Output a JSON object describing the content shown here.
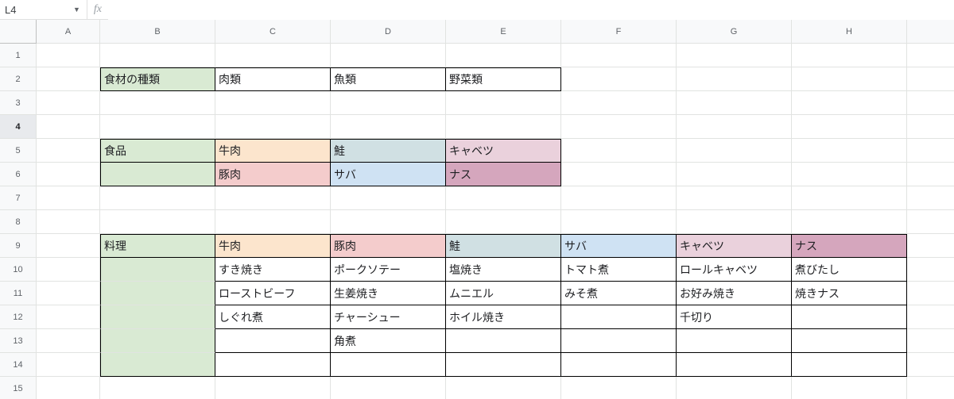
{
  "nameBox": "L4",
  "formula": "",
  "selectedRow": 4,
  "columns": [
    "A",
    "B",
    "C",
    "D",
    "E",
    "F",
    "G",
    "H"
  ],
  "rows": [
    1,
    2,
    3,
    4,
    5,
    6,
    7,
    8,
    9,
    10,
    11,
    12,
    13,
    14,
    15
  ],
  "colors": {
    "headerBg": "#f8f9fa",
    "green1": "#d9ead3",
    "orange1": "#fce5cd",
    "pink1": "#f4cccc",
    "blue1": "#d0e0e3",
    "bluepale": "#cfe2f3",
    "rose1": "#ead1dc",
    "mauve": "#d5a6bd",
    "gridLine": "#e1e3e1",
    "black": "#000000"
  },
  "cells": {
    "B2": {
      "v": "食材の種類",
      "bg": "#d9ead3",
      "border": "all"
    },
    "C2": {
      "v": "肉類",
      "border": "tbr"
    },
    "D2": {
      "v": "魚類",
      "border": "tbr"
    },
    "E2": {
      "v": "野菜類",
      "border": "tbr"
    },
    "B5": {
      "v": "食品",
      "bg": "#d9ead3",
      "border": "all"
    },
    "C5": {
      "v": "牛肉",
      "bg": "#fce5cd",
      "border": "tbr"
    },
    "D5": {
      "v": "鮭",
      "bg": "#d0e0e3",
      "border": "tbr"
    },
    "E5": {
      "v": "キャベツ",
      "bg": "#ead1dc",
      "border": "tbr"
    },
    "B6": {
      "v": "",
      "bg": "#d9ead3",
      "border": "lbr"
    },
    "C6": {
      "v": "豚肉",
      "bg": "#f4cccc",
      "border": "br"
    },
    "D6": {
      "v": "サバ",
      "bg": "#cfe2f3",
      "border": "br"
    },
    "E6": {
      "v": "ナス",
      "bg": "#d5a6bd",
      "border": "br"
    },
    "B9": {
      "v": "料理",
      "bg": "#d9ead3",
      "border": "all"
    },
    "C9": {
      "v": "牛肉",
      "bg": "#fce5cd",
      "border": "tbr"
    },
    "D9": {
      "v": "豚肉",
      "bg": "#f4cccc",
      "border": "tbr"
    },
    "E9": {
      "v": "鮭",
      "bg": "#d0e0e3",
      "border": "tbr"
    },
    "F9": {
      "v": "サバ",
      "bg": "#cfe2f3",
      "border": "tbr"
    },
    "G9": {
      "v": "キャベツ",
      "bg": "#ead1dc",
      "border": "tbr"
    },
    "H9": {
      "v": "ナス",
      "bg": "#d5a6bd",
      "border": "tbr"
    },
    "B10": {
      "v": "",
      "bg": "#d9ead3",
      "border": "lr"
    },
    "C10": {
      "v": "すき焼き",
      "border": "br"
    },
    "D10": {
      "v": "ポークソテー",
      "border": "br"
    },
    "E10": {
      "v": "塩焼き",
      "border": "br"
    },
    "F10": {
      "v": "トマト煮",
      "border": "br"
    },
    "G10": {
      "v": "ロールキャベツ",
      "border": "br"
    },
    "H10": {
      "v": "煮びたし",
      "border": "br"
    },
    "B11": {
      "v": "",
      "bg": "#d9ead3",
      "border": "lr"
    },
    "C11": {
      "v": "ローストビーフ",
      "border": "br"
    },
    "D11": {
      "v": "生姜焼き",
      "border": "br"
    },
    "E11": {
      "v": "ムニエル",
      "border": "br"
    },
    "F11": {
      "v": "みそ煮",
      "border": "br"
    },
    "G11": {
      "v": "お好み焼き",
      "border": "br"
    },
    "H11": {
      "v": "焼きナス",
      "border": "br"
    },
    "B12": {
      "v": "",
      "bg": "#d9ead3",
      "border": "lr"
    },
    "C12": {
      "v": "しぐれ煮",
      "border": "br"
    },
    "D12": {
      "v": "チャーシュー",
      "border": "br"
    },
    "E12": {
      "v": "ホイル焼き",
      "border": "br"
    },
    "F12": {
      "v": "",
      "border": "br"
    },
    "G12": {
      "v": "千切り",
      "border": "br"
    },
    "H12": {
      "v": "",
      "border": "br"
    },
    "B13": {
      "v": "",
      "bg": "#d9ead3",
      "border": "lr"
    },
    "C13": {
      "v": "",
      "border": "br"
    },
    "D13": {
      "v": "角煮",
      "border": "br"
    },
    "E13": {
      "v": "",
      "border": "br"
    },
    "F13": {
      "v": "",
      "border": "br"
    },
    "G13": {
      "v": "",
      "border": "br"
    },
    "H13": {
      "v": "",
      "border": "br"
    },
    "B14": {
      "v": "",
      "bg": "#d9ead3",
      "border": "lbr"
    },
    "C14": {
      "v": "",
      "border": "br"
    },
    "D14": {
      "v": "",
      "border": "br"
    },
    "E14": {
      "v": "",
      "border": "br"
    },
    "F14": {
      "v": "",
      "border": "br"
    },
    "G14": {
      "v": "",
      "border": "br"
    },
    "H14": {
      "v": "",
      "border": "br"
    }
  }
}
